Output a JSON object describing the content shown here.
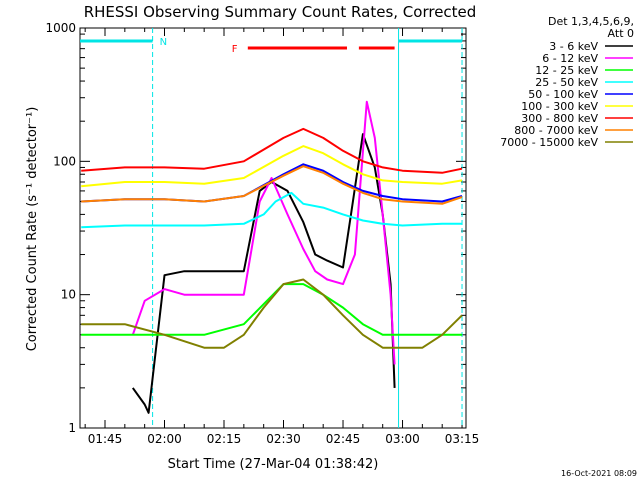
{
  "chart_data": {
    "type": "line",
    "title": "RHESSI Observing Summary Count Rates, Corrected",
    "xlabel": "Start Time (27-Mar-04 01:38:42)",
    "ylabel": "Corrected Count Rate (s⁻¹ detector⁻¹)",
    "y_scale": "log",
    "ylim": [
      1,
      1000
    ],
    "xlim": [
      "01:38:42",
      "03:16:00"
    ],
    "x_ticks": [
      "01:45",
      "02:00",
      "02:15",
      "02:30",
      "02:45",
      "03:00",
      "03:15"
    ],
    "y_ticks": [
      "1",
      "10",
      "100",
      "1000"
    ],
    "legend_header": [
      "Det 1,3,4,5,6,9,",
      "Att 0"
    ],
    "legend_position": "right",
    "footer_date": "16-Oct-2021 08:09",
    "markers": {
      "night_label": "N",
      "flare_label": "F",
      "night_intervals": [
        [
          "01:38:42",
          "01:57:00"
        ],
        [
          "02:59:00",
          "03:15:00"
        ]
      ],
      "flare_intervals": [
        [
          "02:21:00",
          "02:46:00"
        ],
        [
          "02:49:00",
          "02:58:00"
        ]
      ],
      "data_gap_lines": [
        "01:57:00",
        "02:59:00",
        "03:15:00"
      ]
    },
    "series": [
      {
        "name": "3 - 6 keV",
        "color": "#000000",
        "x": [
          "01:52",
          "01:55",
          "01:56",
          "02:00",
          "02:05",
          "02:10",
          "02:15",
          "02:20",
          "02:24",
          "02:27",
          "02:31",
          "02:35",
          "02:38",
          "02:41",
          "02:45",
          "02:47",
          "02:50",
          "02:53",
          "02:55",
          "02:57",
          "02:58"
        ],
        "values": [
          2.0,
          1.5,
          1.3,
          14,
          15,
          15,
          15,
          15,
          60,
          70,
          60,
          35,
          20,
          18,
          16,
          40,
          160,
          90,
          40,
          12,
          2
        ]
      },
      {
        "name": "6 - 12 keV",
        "color": "#ff00ff",
        "x": [
          "01:52",
          "01:55",
          "02:00",
          "02:05",
          "02:10",
          "02:15",
          "02:20",
          "02:24",
          "02:27",
          "02:31",
          "02:35",
          "02:38",
          "02:41",
          "02:45",
          "02:48",
          "02:51",
          "02:53",
          "02:55",
          "02:57",
          "02:58"
        ],
        "values": [
          5,
          9,
          11,
          10,
          10,
          10,
          10,
          50,
          75,
          40,
          22,
          15,
          13,
          12,
          20,
          280,
          150,
          40,
          10,
          3
        ]
      },
      {
        "name": "12 - 25 keV",
        "color": "#00ff00",
        "x": [
          "01:39",
          "01:50",
          "01:55",
          "02:00",
          "02:10",
          "02:20",
          "02:30",
          "02:35",
          "02:40",
          "02:45",
          "02:50",
          "02:55",
          "02:58",
          "03:05",
          "03:15"
        ],
        "values": [
          5,
          5,
          5,
          5,
          5,
          6,
          12,
          12,
          10,
          8,
          6,
          5,
          5,
          5,
          5
        ]
      },
      {
        "name": "25 - 50 keV",
        "color": "#00ffff",
        "x": [
          "01:39",
          "01:50",
          "02:00",
          "02:10",
          "02:20",
          "02:25",
          "02:28",
          "02:32",
          "02:35",
          "02:40",
          "02:45",
          "02:50",
          "02:55",
          "03:00",
          "03:10",
          "03:15"
        ],
        "values": [
          32,
          33,
          33,
          33,
          34,
          40,
          50,
          58,
          48,
          45,
          40,
          36,
          34,
          33,
          34,
          34
        ]
      },
      {
        "name": "50 - 100 keV",
        "color": "#0000ff",
        "x": [
          "01:39",
          "01:50",
          "02:00",
          "02:10",
          "02:20",
          "02:30",
          "02:35",
          "02:40",
          "02:45",
          "02:50",
          "02:55",
          "03:00",
          "03:10",
          "03:15"
        ],
        "values": [
          50,
          52,
          52,
          50,
          55,
          80,
          95,
          85,
          70,
          60,
          55,
          52,
          50,
          55
        ]
      },
      {
        "name": "100 - 300 keV",
        "color": "#ffff00",
        "x": [
          "01:39",
          "01:50",
          "02:00",
          "02:10",
          "02:20",
          "02:30",
          "02:35",
          "02:40",
          "02:45",
          "02:50",
          "02:55",
          "03:00",
          "03:10",
          "03:15"
        ],
        "values": [
          65,
          70,
          70,
          68,
          75,
          110,
          130,
          115,
          95,
          80,
          72,
          70,
          68,
          72
        ]
      },
      {
        "name": "300 - 800 keV",
        "color": "#ff0000",
        "x": [
          "01:39",
          "01:50",
          "02:00",
          "02:10",
          "02:20",
          "02:30",
          "02:35",
          "02:40",
          "02:45",
          "02:50",
          "02:55",
          "03:00",
          "03:10",
          "03:15"
        ],
        "values": [
          85,
          90,
          90,
          88,
          100,
          150,
          175,
          150,
          120,
          100,
          90,
          85,
          82,
          88
        ]
      },
      {
        "name": "800 - 7000 keV",
        "color": "#ff8000",
        "x": [
          "01:39",
          "01:50",
          "02:00",
          "02:10",
          "02:20",
          "02:30",
          "02:35",
          "02:40",
          "02:45",
          "02:50",
          "02:55",
          "03:00",
          "03:10",
          "03:15"
        ],
        "values": [
          50,
          52,
          52,
          50,
          55,
          78,
          92,
          82,
          68,
          58,
          52,
          50,
          48,
          54
        ]
      },
      {
        "name": "7000 - 15000 keV",
        "color": "#808000",
        "x": [
          "01:39",
          "01:50",
          "02:00",
          "02:10",
          "02:15",
          "02:20",
          "02:25",
          "02:30",
          "02:35",
          "02:40",
          "02:45",
          "02:50",
          "02:55",
          "03:00",
          "03:05",
          "03:10",
          "03:15"
        ],
        "values": [
          6,
          6,
          5,
          4,
          4,
          5,
          8,
          12,
          13,
          10,
          7,
          5,
          4,
          4,
          4,
          5,
          7
        ]
      }
    ]
  }
}
